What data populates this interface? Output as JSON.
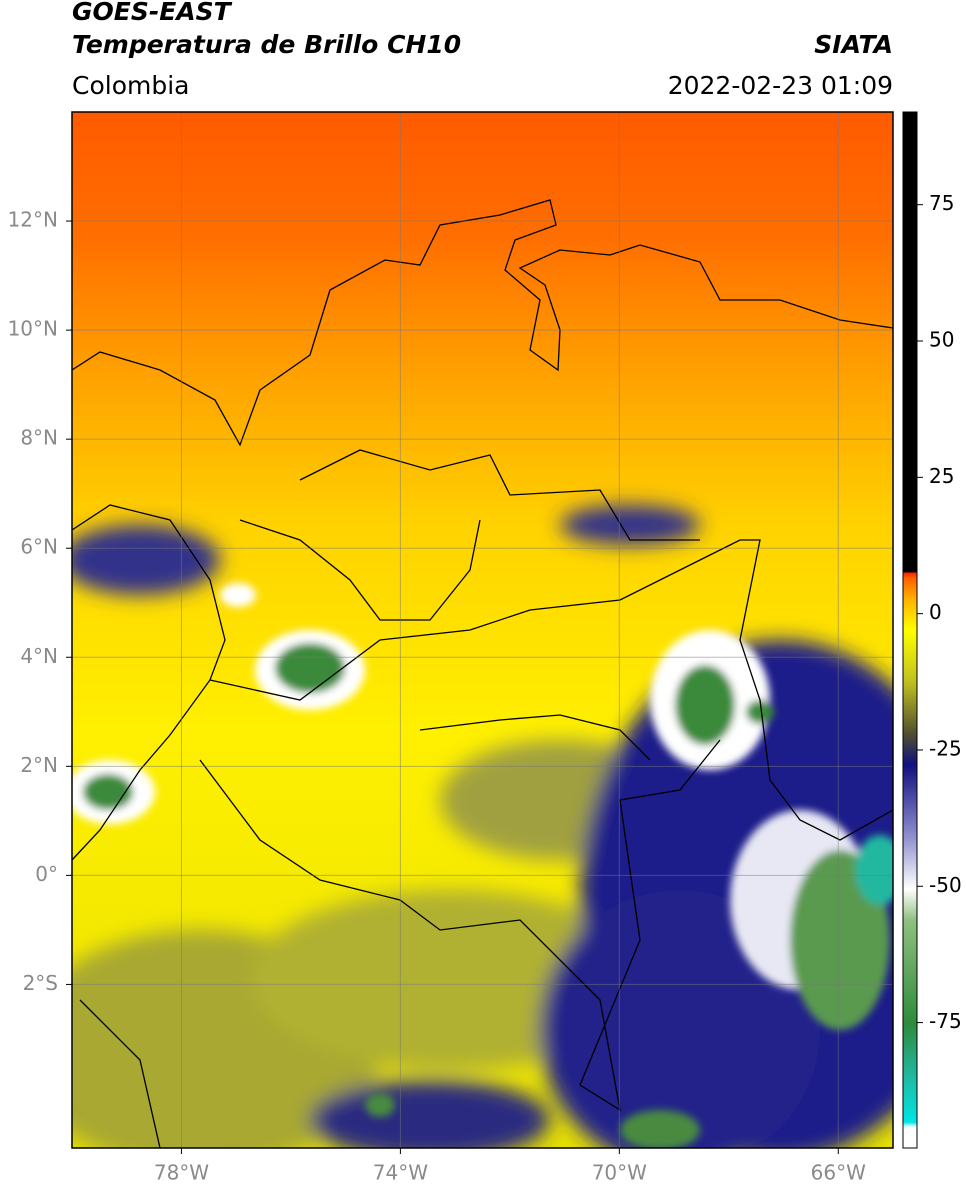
{
  "header": {
    "title": "GOES-EAST",
    "subtitle": "Temperatura de Brillo CH10",
    "region": "Colombia",
    "source": "SIATA",
    "datetime": "2022-02-23 01:09"
  },
  "map": {
    "lon_range": [
      -80,
      -65
    ],
    "lat_range": [
      -5,
      14
    ],
    "grid": true,
    "lon_ticks": [
      {
        "value": -78,
        "label": "78°W"
      },
      {
        "value": -74,
        "label": "74°W"
      },
      {
        "value": -70,
        "label": "70°W"
      },
      {
        "value": -66,
        "label": "66°W"
      }
    ],
    "lat_ticks": [
      {
        "value": 12,
        "label": "12°N"
      },
      {
        "value": 10,
        "label": "10°N"
      },
      {
        "value": 8,
        "label": "8°N"
      },
      {
        "value": 6,
        "label": "6°N"
      },
      {
        "value": 4,
        "label": "4°N"
      },
      {
        "value": 2,
        "label": "2°N"
      },
      {
        "value": 0,
        "label": "0°"
      },
      {
        "value": -2,
        "label": "2°S"
      }
    ]
  },
  "colorbar": {
    "range": [
      -98,
      92
    ],
    "ticks": [
      75,
      50,
      25,
      0,
      -25,
      -50,
      -75
    ]
  }
}
